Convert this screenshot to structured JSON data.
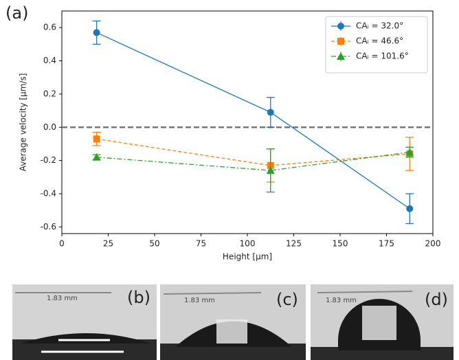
{
  "panel_label": "(a)",
  "chart_data": {
    "type": "line",
    "xlabel": "Height [μm]",
    "ylabel": "Average velocity [μm/s]",
    "x": [
      18.75,
      112.5,
      187.5
    ],
    "series": [
      {
        "name": "CAᵢ = 32.0°",
        "color": "#1f77b4",
        "marker": "circle",
        "linestyle": "solid",
        "values": [
          0.57,
          0.09,
          -0.49
        ],
        "errors": [
          0.07,
          0.09,
          0.09
        ]
      },
      {
        "name": "CAᵢ = 46.6°",
        "color": "#ff7f0e",
        "marker": "square",
        "linestyle": "dashed",
        "values": [
          -0.07,
          -0.23,
          -0.16
        ],
        "errors": [
          0.04,
          0.1,
          0.1
        ]
      },
      {
        "name": "CAᵢ = 101.6°",
        "color": "#2ca02c",
        "marker": "triangle",
        "linestyle": "dashdot",
        "values": [
          -0.18,
          -0.26,
          -0.15
        ],
        "errors": [
          0.015,
          0.13,
          0.03
        ]
      }
    ],
    "xlim": [
      0,
      200
    ],
    "xticks": [
      0,
      25,
      50,
      75,
      100,
      125,
      150,
      175,
      200
    ],
    "ylim": [
      -0.64,
      0.7
    ],
    "yticks": [
      -0.6,
      -0.4,
      -0.2,
      {
        "value": 0,
        "label": "0.0"
      },
      0.2,
      0.4,
      0.6
    ],
    "hline": 0,
    "legend": "upper right",
    "grid": false
  },
  "panels": [
    {
      "label": "(b)",
      "scale": "1.83 mm"
    },
    {
      "label": "(c)",
      "scale": "1.83 mm"
    },
    {
      "label": "(d)",
      "scale": "1.83 mm"
    }
  ]
}
